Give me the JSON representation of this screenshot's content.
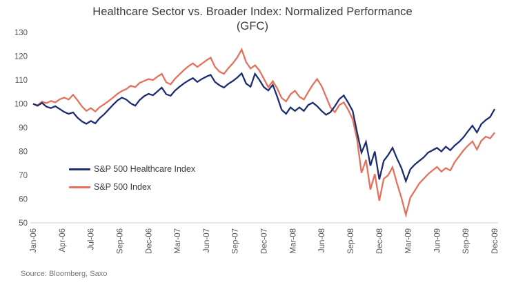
{
  "title": {
    "line1": "Healthcare Sector vs. Broader Index: Normalized Performance",
    "line2": "(GFC)"
  },
  "source": "Source: Bloomberg, Saxo",
  "chart_data": {
    "type": "line",
    "title": "Healthcare Sector vs. Broader Index: Normalized Performance (GFC)",
    "x_range": [
      "Jan-06",
      "Dec-09"
    ],
    "x_tick_labels": [
      "Jan-06",
      "Apr-06",
      "Jul-06",
      "Sep-06",
      "Dec-06",
      "Mar-07",
      "Jun-07",
      "Sep-07",
      "Dec-07",
      "Mar-08",
      "Jun-08",
      "Sep-08",
      "Dec-08",
      "Mar-09",
      "Jun-09",
      "Sep-09",
      "Dec-09"
    ],
    "y_ticks": [
      130,
      120,
      110,
      100,
      90,
      80,
      70,
      60,
      50
    ],
    "ylim": [
      50,
      130
    ],
    "grid": false,
    "legend_position": "inside-left",
    "sampling": "biweekly normalized values, Jan-06 = 100",
    "axis_color": "#d2d2d2",
    "series": [
      {
        "name": "S&P 500 Healthcare Index",
        "color": "#1c2c72",
        "values": [
          100.0,
          99.2,
          100.4,
          98.8,
          98.2,
          99.0,
          97.8,
          96.6,
          95.8,
          96.4,
          94.2,
          92.6,
          91.6,
          92.8,
          91.8,
          94.0,
          95.6,
          97.6,
          99.6,
          101.4,
          102.6,
          101.8,
          100.2,
          99.2,
          101.6,
          103.2,
          104.2,
          103.6,
          105.2,
          106.8,
          104.0,
          103.4,
          105.6,
          107.2,
          108.6,
          109.8,
          110.8,
          109.2,
          110.4,
          111.4,
          112.2,
          109.2,
          107.8,
          106.8,
          108.4,
          109.6,
          111.0,
          112.8,
          108.5,
          107.2,
          112.6,
          110.0,
          107.0,
          105.6,
          108.0,
          103.0,
          97.5,
          95.8,
          98.5,
          97.0,
          98.5,
          97.0,
          99.5,
          100.5,
          99.0,
          97.0,
          95.4,
          96.5,
          99.0,
          102.0,
          103.5,
          100.5,
          97.0,
          88.0,
          79.5,
          84.0,
          74.0,
          80.0,
          68.2,
          76.0,
          78.5,
          81.5,
          77.0,
          73.0,
          67.5,
          72.5,
          74.5,
          76.0,
          77.5,
          79.5,
          80.5,
          81.5,
          80.0,
          82.0,
          80.5,
          82.5,
          84.0,
          86.0,
          88.5,
          90.8,
          88.0,
          91.5,
          93.2,
          94.5,
          97.8
        ]
      },
      {
        "name": "S&P 500 Index",
        "color": "#e4715c",
        "values": [
          100.0,
          99.4,
          100.9,
          100.3,
          101.2,
          100.6,
          101.9,
          102.6,
          101.8,
          103.8,
          101.5,
          98.9,
          97.0,
          98.2,
          96.8,
          98.6,
          99.8,
          101.2,
          102.6,
          104.2,
          105.4,
          106.2,
          107.6,
          107.0,
          108.8,
          109.6,
          110.4,
          110.0,
          111.4,
          112.6,
          109.0,
          108.2,
          110.6,
          112.4,
          114.2,
          115.8,
          117.0,
          115.5,
          116.8,
          118.2,
          119.4,
          115.5,
          113.5,
          112.6,
          115.0,
          117.0,
          119.5,
          122.8,
          117.5,
          114.8,
          116.2,
          114.0,
          110.5,
          107.0,
          109.5,
          106.5,
          102.5,
          101.0,
          104.0,
          105.5,
          103.0,
          101.8,
          105.0,
          108.0,
          110.4,
          107.5,
          103.0,
          98.5,
          96.5,
          99.5,
          100.6,
          97.5,
          93.5,
          85.0,
          71.0,
          76.5,
          64.0,
          70.5,
          59.3,
          68.5,
          70.0,
          73.4,
          66.5,
          60.5,
          53.4,
          60.6,
          63.5,
          66.5,
          68.5,
          70.5,
          72.0,
          73.5,
          71.5,
          73.0,
          72.0,
          75.5,
          78.0,
          80.5,
          82.5,
          84.2,
          80.8,
          84.5,
          86.2,
          85.5,
          87.9
        ]
      }
    ]
  }
}
